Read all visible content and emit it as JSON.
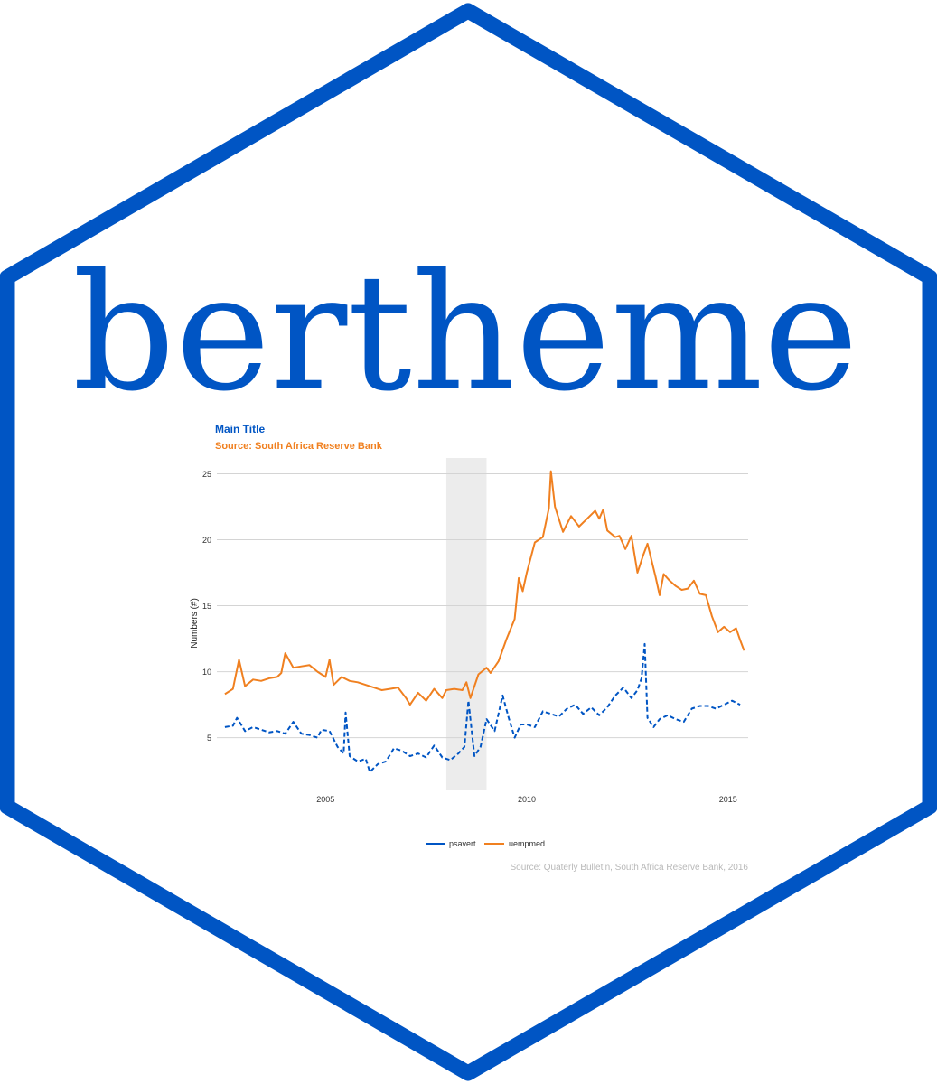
{
  "sticker": {
    "name": "bertheme",
    "border_color": "#0055c4",
    "text_color": "#0055c4",
    "background": "#ffffff"
  },
  "chart_data": {
    "type": "line",
    "title": "Main Title",
    "subtitle": "Source: South Africa Reserve Bank",
    "caption": "Source: Quaterly Bulletin, South Africa Reserve Bank, 2016",
    "xlabel": "",
    "ylabel": "Numbers (#)",
    "xlim": [
      2002.3,
      2015.5
    ],
    "ylim": [
      1.0,
      26.2
    ],
    "x_ticks": [
      {
        "value": 2005,
        "label": "2005"
      },
      {
        "value": 2010,
        "label": "2010"
      },
      {
        "value": 2015,
        "label": "2015"
      }
    ],
    "y_ticks": [
      {
        "value": 5,
        "label": "5"
      },
      {
        "value": 10,
        "label": "10"
      },
      {
        "value": 15,
        "label": "15"
      },
      {
        "value": 20,
        "label": "20"
      },
      {
        "value": 25,
        "label": "25"
      }
    ],
    "grid": true,
    "legend_position": "bottom",
    "shaded_region": {
      "x0": 2008.0,
      "x1": 2009.0,
      "color": "#ececec"
    },
    "colors": {
      "title": "#0055c4",
      "subtitle": "#f08020",
      "caption": "#b8b8b8",
      "grid": "#d4d4d4",
      "axis_text": "#333333"
    },
    "series": [
      {
        "name": "psavert",
        "color": "#0055c4",
        "dash": "dashed",
        "points": [
          [
            2002.5,
            5.8
          ],
          [
            2002.7,
            5.9
          ],
          [
            2002.8,
            6.5
          ],
          [
            2003.0,
            5.5
          ],
          [
            2003.2,
            5.8
          ],
          [
            2003.4,
            5.6
          ],
          [
            2003.6,
            5.4
          ],
          [
            2003.8,
            5.5
          ],
          [
            2004.0,
            5.3
          ],
          [
            2004.2,
            6.2
          ],
          [
            2004.4,
            5.3
          ],
          [
            2004.6,
            5.2
          ],
          [
            2004.8,
            5.0
          ],
          [
            2004.9,
            5.6
          ],
          [
            2005.1,
            5.5
          ],
          [
            2005.3,
            4.3
          ],
          [
            2005.45,
            3.8
          ],
          [
            2005.5,
            6.9
          ],
          [
            2005.6,
            3.6
          ],
          [
            2005.8,
            3.2
          ],
          [
            2006.0,
            3.4
          ],
          [
            2006.1,
            2.4
          ],
          [
            2006.3,
            3.0
          ],
          [
            2006.5,
            3.2
          ],
          [
            2006.7,
            4.2
          ],
          [
            2006.9,
            4.0
          ],
          [
            2007.1,
            3.6
          ],
          [
            2007.3,
            3.8
          ],
          [
            2007.5,
            3.5
          ],
          [
            2007.7,
            4.4
          ],
          [
            2007.9,
            3.5
          ],
          [
            2008.1,
            3.3
          ],
          [
            2008.3,
            3.8
          ],
          [
            2008.45,
            4.3
          ],
          [
            2008.55,
            7.8
          ],
          [
            2008.7,
            3.6
          ],
          [
            2008.85,
            4.3
          ],
          [
            2009.0,
            6.4
          ],
          [
            2009.2,
            5.5
          ],
          [
            2009.4,
            8.2
          ],
          [
            2009.55,
            6.5
          ],
          [
            2009.7,
            5.0
          ],
          [
            2009.85,
            6.0
          ],
          [
            2010.0,
            6.0
          ],
          [
            2010.2,
            5.8
          ],
          [
            2010.4,
            7.0
          ],
          [
            2010.6,
            6.8
          ],
          [
            2010.8,
            6.6
          ],
          [
            2011.0,
            7.2
          ],
          [
            2011.2,
            7.5
          ],
          [
            2011.4,
            6.8
          ],
          [
            2011.6,
            7.3
          ],
          [
            2011.8,
            6.7
          ],
          [
            2012.0,
            7.3
          ],
          [
            2012.2,
            8.2
          ],
          [
            2012.4,
            8.8
          ],
          [
            2012.6,
            8.0
          ],
          [
            2012.75,
            8.6
          ],
          [
            2012.85,
            9.5
          ],
          [
            2012.93,
            12.1
          ],
          [
            2013.0,
            6.5
          ],
          [
            2013.15,
            5.8
          ],
          [
            2013.3,
            6.4
          ],
          [
            2013.5,
            6.7
          ],
          [
            2013.7,
            6.4
          ],
          [
            2013.9,
            6.2
          ],
          [
            2014.1,
            7.2
          ],
          [
            2014.3,
            7.4
          ],
          [
            2014.5,
            7.4
          ],
          [
            2014.7,
            7.2
          ],
          [
            2014.9,
            7.5
          ],
          [
            2015.1,
            7.8
          ],
          [
            2015.3,
            7.5
          ]
        ]
      },
      {
        "name": "uempmed",
        "color": "#f08020",
        "dash": "solid",
        "points": [
          [
            2002.5,
            8.3
          ],
          [
            2002.7,
            8.7
          ],
          [
            2002.85,
            10.9
          ],
          [
            2003.0,
            8.9
          ],
          [
            2003.2,
            9.4
          ],
          [
            2003.4,
            9.3
          ],
          [
            2003.6,
            9.5
          ],
          [
            2003.8,
            9.6
          ],
          [
            2003.9,
            9.9
          ],
          [
            2004.0,
            11.4
          ],
          [
            2004.2,
            10.3
          ],
          [
            2004.4,
            10.4
          ],
          [
            2004.6,
            10.5
          ],
          [
            2004.8,
            10.0
          ],
          [
            2005.0,
            9.6
          ],
          [
            2005.1,
            10.9
          ],
          [
            2005.2,
            9.0
          ],
          [
            2005.4,
            9.6
          ],
          [
            2005.6,
            9.3
          ],
          [
            2005.8,
            9.2
          ],
          [
            2006.0,
            9.0
          ],
          [
            2006.2,
            8.8
          ],
          [
            2006.4,
            8.6
          ],
          [
            2006.6,
            8.7
          ],
          [
            2006.8,
            8.8
          ],
          [
            2007.0,
            8.0
          ],
          [
            2007.1,
            7.5
          ],
          [
            2007.3,
            8.4
          ],
          [
            2007.5,
            7.8
          ],
          [
            2007.7,
            8.7
          ],
          [
            2007.9,
            8.0
          ],
          [
            2008.0,
            8.6
          ],
          [
            2008.2,
            8.7
          ],
          [
            2008.4,
            8.6
          ],
          [
            2008.5,
            9.2
          ],
          [
            2008.6,
            8.0
          ],
          [
            2008.8,
            9.8
          ],
          [
            2009.0,
            10.3
          ],
          [
            2009.1,
            9.9
          ],
          [
            2009.3,
            10.8
          ],
          [
            2009.5,
            12.5
          ],
          [
            2009.7,
            14.0
          ],
          [
            2009.8,
            17.1
          ],
          [
            2009.9,
            16.1
          ],
          [
            2010.0,
            17.5
          ],
          [
            2010.2,
            19.8
          ],
          [
            2010.4,
            20.2
          ],
          [
            2010.55,
            22.4
          ],
          [
            2010.6,
            25.2
          ],
          [
            2010.7,
            22.5
          ],
          [
            2010.9,
            20.6
          ],
          [
            2011.0,
            21.2
          ],
          [
            2011.1,
            21.8
          ],
          [
            2011.3,
            21.0
          ],
          [
            2011.5,
            21.6
          ],
          [
            2011.7,
            22.2
          ],
          [
            2011.8,
            21.6
          ],
          [
            2011.9,
            22.3
          ],
          [
            2012.0,
            20.7
          ],
          [
            2012.2,
            20.2
          ],
          [
            2012.3,
            20.3
          ],
          [
            2012.45,
            19.3
          ],
          [
            2012.6,
            20.3
          ],
          [
            2012.75,
            17.5
          ],
          [
            2012.9,
            18.9
          ],
          [
            2013.0,
            19.7
          ],
          [
            2013.2,
            17.2
          ],
          [
            2013.3,
            15.8
          ],
          [
            2013.4,
            17.4
          ],
          [
            2013.55,
            16.9
          ],
          [
            2013.7,
            16.5
          ],
          [
            2013.85,
            16.2
          ],
          [
            2014.0,
            16.3
          ],
          [
            2014.15,
            16.9
          ],
          [
            2014.3,
            15.9
          ],
          [
            2014.45,
            15.8
          ],
          [
            2014.6,
            14.2
          ],
          [
            2014.75,
            13.0
          ],
          [
            2014.9,
            13.4
          ],
          [
            2015.05,
            13.0
          ],
          [
            2015.2,
            13.3
          ],
          [
            2015.3,
            12.4
          ],
          [
            2015.4,
            11.6
          ]
        ]
      }
    ]
  }
}
